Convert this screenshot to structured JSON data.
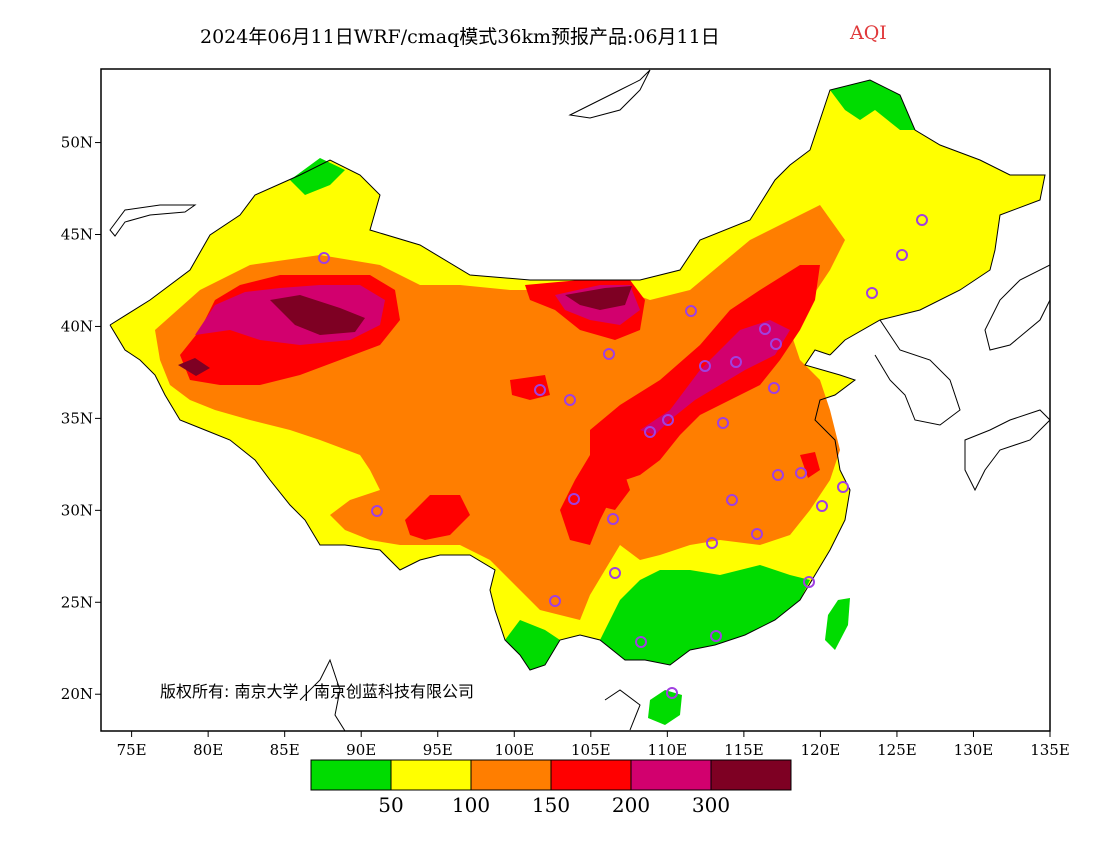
{
  "title": {
    "main": "2024年06月11日WRF/cmaq模式36km预报产品:06月11日",
    "variable": "AQI",
    "variable_color": "#e0393b"
  },
  "copyright": "版权所有: 南京大学 | 南京创蓝科技有限公司",
  "axes": {
    "lon_ticks": [
      "75E",
      "80E",
      "85E",
      "90E",
      "95E",
      "100E",
      "105E",
      "110E",
      "115E",
      "120E",
      "125E",
      "130E",
      "135E"
    ],
    "lat_ticks": [
      "50N",
      "45N",
      "40N",
      "35N",
      "30N",
      "25N",
      "20N"
    ],
    "lon_range": [
      73,
      135
    ],
    "lat_range": [
      18,
      54
    ]
  },
  "legend": {
    "colors": [
      "#00dc00",
      "#ffff00",
      "#ff7e00",
      "#ff0000",
      "#d2006e",
      "#7e0023"
    ],
    "labels": [
      "50",
      "100",
      "150",
      "200",
      "300"
    ],
    "categories": [
      "0-50",
      "50-100",
      "100-150",
      "150-200",
      "200-300",
      ">300"
    ]
  },
  "map_zones": [
    {
      "name": "northeast-north",
      "level": "green"
    },
    {
      "name": "northeast",
      "level": "yellow"
    },
    {
      "name": "northwest-xinjiang",
      "level": "orange-red"
    },
    {
      "name": "tarim-basin",
      "level": "dark-red"
    },
    {
      "name": "inner-mongolia-west",
      "level": "dark-red"
    },
    {
      "name": "north-china-plain",
      "level": "red-purple"
    },
    {
      "name": "tibet-qinghai",
      "level": "orange"
    },
    {
      "name": "southwest",
      "level": "orange"
    },
    {
      "name": "south-china",
      "level": "green"
    },
    {
      "name": "hainan",
      "level": "green"
    },
    {
      "name": "taiwan",
      "level": "green"
    }
  ],
  "cities_marker_color": "#a040e0"
}
